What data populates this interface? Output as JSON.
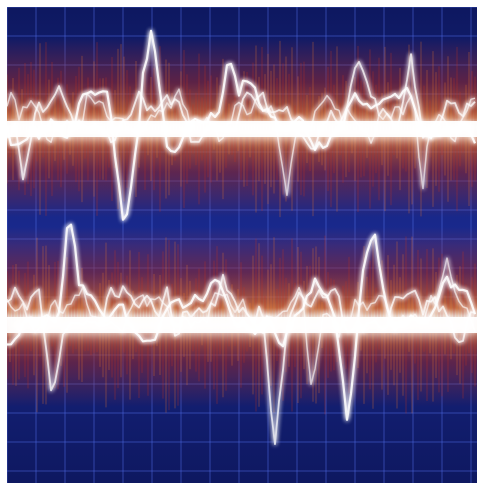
{
  "image": {
    "subject": "glowing-audio-waveforms",
    "palette": {
      "background_deep": "#101a63",
      "background_mid": "#1d2f9c",
      "grid_line": "#4d68e0",
      "glow_red": "#c8321c",
      "glow_orange": "#f07a2a",
      "glow_core": "#ffffff"
    },
    "waveform_count": 2
  }
}
